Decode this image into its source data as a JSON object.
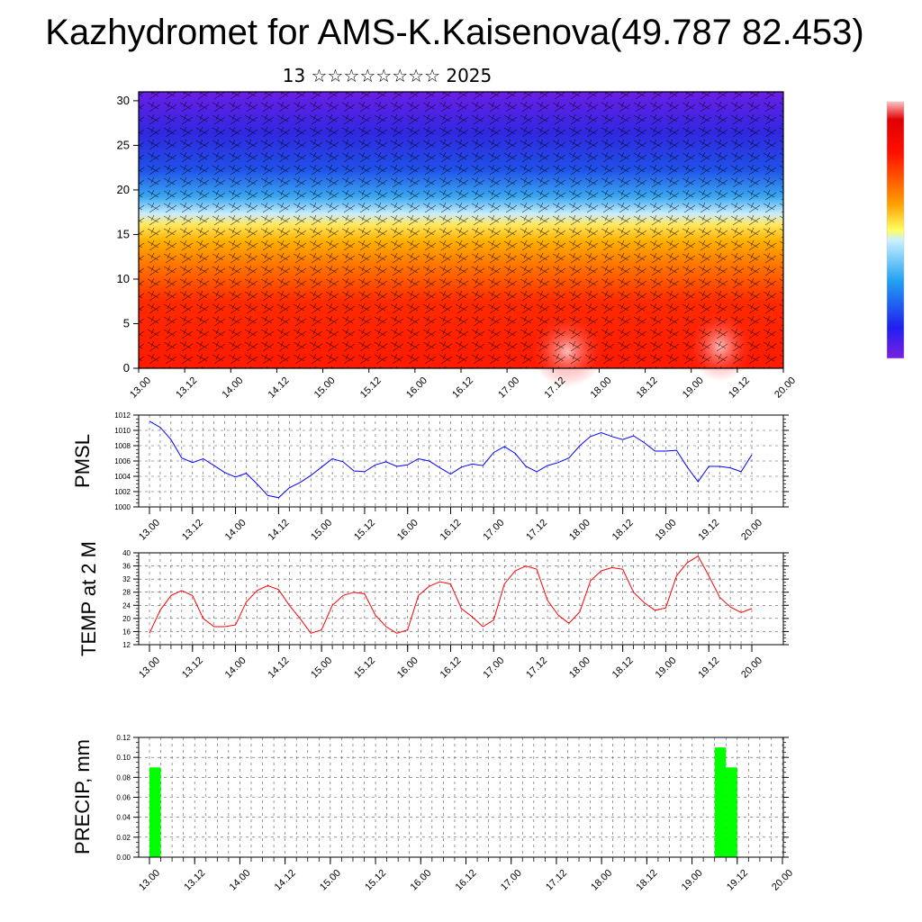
{
  "header": {
    "title": "Kazhydromet for AMS-K.Kaisenova(49.787 82.453)",
    "subtitle": "13 ☆☆☆☆☆☆☆☆ 2025"
  },
  "chart_data": [
    {
      "type": "heatmap",
      "title": "",
      "xlabel": "",
      "ylabel": "",
      "x_tick_labels": [
        "13.00",
        "13.12",
        "14.00",
        "14.12",
        "15.00",
        "15.12",
        "16.00",
        "16.12",
        "17.00",
        "17.12",
        "18.00",
        "18.12",
        "19.00",
        "19.12",
        "20.00"
      ],
      "y_ticks": [
        0,
        5,
        10,
        15,
        20,
        25,
        30
      ],
      "ylim": [
        0,
        31
      ],
      "overlay": "wind barbs",
      "colorbar": "rainbow, purple (low) to red/pink (high), unlabeled",
      "colors": {
        "low": "#6a1ee6",
        "mid_low": "#2a9ef0",
        "mid": "#ffef60",
        "mid_high": "#ff8a00",
        "high": "#ff1400"
      }
    },
    {
      "type": "line",
      "title": "",
      "ylabel": "PMSL",
      "x_tick_labels": [
        "13.00",
        "13.12",
        "14.00",
        "14.12",
        "15.00",
        "15.12",
        "16.00",
        "16.12",
        "17.00",
        "17.12",
        "18.00",
        "18.12",
        "19.00",
        "19.12",
        "20.00"
      ],
      "xlim": [
        0,
        168
      ],
      "x": [
        0,
        3,
        6,
        9,
        12,
        15,
        18,
        21,
        24,
        27,
        30,
        33,
        36,
        39,
        42,
        45,
        48,
        51,
        54,
        57,
        60,
        63,
        66,
        69,
        72,
        75,
        78,
        81,
        84,
        87,
        90,
        93,
        96,
        99,
        102,
        105,
        108,
        111,
        114,
        117,
        120,
        123,
        126,
        129,
        132,
        135,
        138,
        141,
        144,
        147,
        150,
        153,
        156,
        159,
        162,
        165,
        168
      ],
      "y": [
        1011.2,
        1010.4,
        1008.8,
        1006.4,
        1005.8,
        1006.3,
        1005.4,
        1004.5,
        1003.9,
        1004.4,
        1003.0,
        1001.5,
        1001.2,
        1002.5,
        1003.2,
        1004.1,
        1005.2,
        1006.3,
        1005.9,
        1004.7,
        1004.6,
        1005.5,
        1005.9,
        1005.3,
        1005.5,
        1006.3,
        1006.0,
        1005.1,
        1004.3,
        1005.2,
        1005.6,
        1005.4,
        1007.1,
        1007.9,
        1007.0,
        1005.3,
        1004.6,
        1005.4,
        1005.8,
        1006.4,
        1008.0,
        1009.2,
        1009.7,
        1009.2,
        1008.8,
        1009.3,
        1008.4,
        1007.3,
        1007.3,
        1007.4,
        1005.2,
        1003.3,
        1005.3,
        1005.3,
        1005.1,
        1004.6,
        1006.8
      ],
      "yticks": [
        1000,
        1002,
        1004,
        1006,
        1008,
        1010,
        1012
      ],
      "ylim": [
        1000,
        1012
      ],
      "color": "#0000ff"
    },
    {
      "type": "line",
      "title": "",
      "ylabel": "TEMP at 2 M",
      "x_tick_labels": [
        "13.00",
        "13.12",
        "14.00",
        "14.12",
        "15.00",
        "15.12",
        "16.00",
        "16.12",
        "17.00",
        "17.12",
        "18.00",
        "18.12",
        "19.00",
        "19.12",
        "20.00"
      ],
      "xlim": [
        0,
        168
      ],
      "x": [
        0,
        3,
        6,
        9,
        12,
        15,
        18,
        21,
        24,
        27,
        30,
        33,
        36,
        39,
        42,
        45,
        48,
        51,
        54,
        57,
        60,
        63,
        66,
        69,
        72,
        75,
        78,
        81,
        84,
        87,
        90,
        93,
        96,
        99,
        102,
        105,
        108,
        111,
        114,
        117,
        120,
        123,
        126,
        129,
        132,
        135,
        138,
        141,
        144,
        147,
        150,
        153,
        156,
        159,
        162,
        165,
        168
      ],
      "y": [
        15.5,
        22.5,
        27.0,
        28.5,
        27.0,
        20.0,
        17.5,
        17.5,
        18.0,
        25.0,
        28.5,
        30.0,
        28.8,
        24.0,
        20.0,
        15.5,
        16.5,
        24.0,
        27.0,
        28.0,
        27.5,
        21.0,
        17.5,
        15.5,
        16.5,
        27.0,
        29.8,
        31.2,
        30.5,
        23.0,
        20.5,
        17.5,
        19.5,
        30.5,
        34.5,
        36.0,
        35.0,
        25.5,
        21.0,
        18.5,
        22.0,
        31.5,
        34.5,
        35.5,
        35.0,
        28.0,
        24.8,
        22.5,
        23.2,
        33.0,
        37.0,
        39.0,
        33.0,
        26.5,
        23.5,
        21.8,
        23.0
      ],
      "yticks": [
        12,
        16,
        20,
        24,
        28,
        32,
        36,
        40
      ],
      "ylim": [
        12,
        40
      ],
      "color": "#ff0000"
    },
    {
      "type": "bar",
      "title": "",
      "ylabel": "PRECIP, mm",
      "x_tick_labels": [
        "13.00",
        "13.12",
        "14.00",
        "14.12",
        "15.00",
        "15.12",
        "16.00",
        "16.12",
        "17.00",
        "17.12",
        "18.00",
        "18.12",
        "19.00",
        "19.12",
        "20.00"
      ],
      "xlim": [
        0,
        168
      ],
      "x": [
        0,
        150,
        153
      ],
      "values": [
        0.09,
        0.11,
        0.09
      ],
      "bar_width_hours": 3,
      "yticks": [
        "0.00",
        "0.02",
        "0.04",
        "0.06",
        "0.08",
        "0.10",
        "0.12"
      ],
      "ylim": [
        0,
        0.12
      ],
      "color": "#00ff00"
    }
  ]
}
